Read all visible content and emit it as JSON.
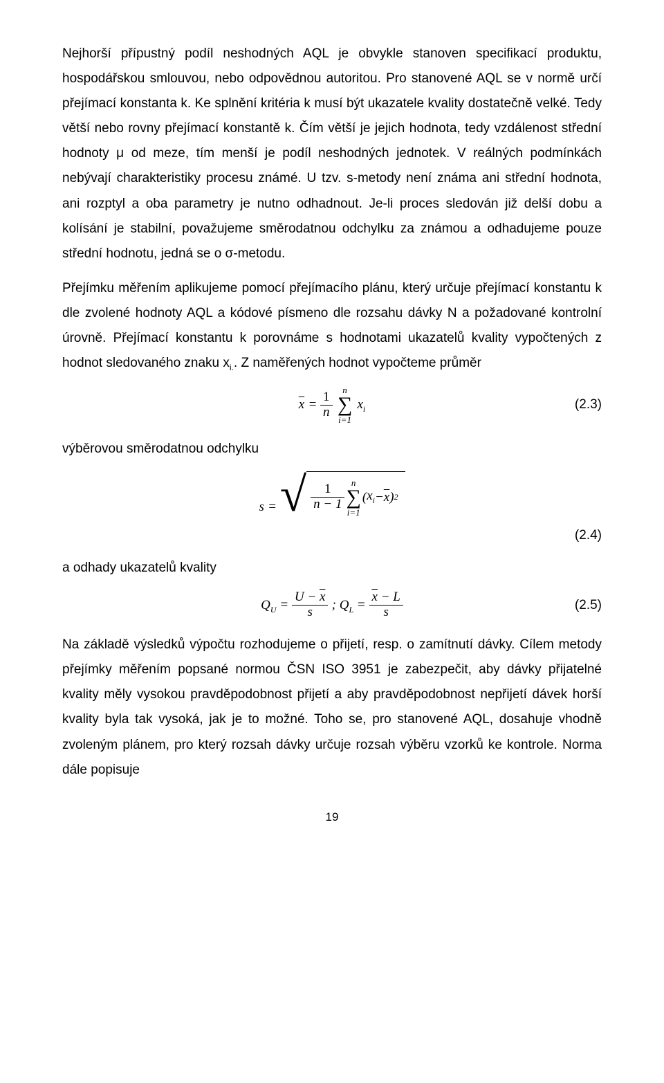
{
  "paragraph1": "Nejhorší přípustný podíl neshodných AQL je obvykle stanoven specifikací produktu, hospodářskou smlouvou, nebo odpovědnou autoritou. Pro stanovené AQL se v normě určí přejímací konstanta k. Ke splnění kritéria k musí být ukazatele kvality dostatečně velké. Tedy větší nebo rovny přejímací konstantě k. Čím větší je jejich hodnota, tedy vzdálenost střední hodnoty μ od meze, tím menší je podíl neshodných jednotek. V reálných podmínkách nebývají charakteristiky procesu známé. U tzv. s-metody není známa ani střední hodnota, ani rozptyl a oba parametry je nutno odhadnout. Je-li proces sledován již delší dobu a kolísání je stabilní, považujeme směrodatnou odchylku za známou a odhadujeme pouze střední hodnotu, jedná se o σ-metodu.",
  "paragraph2_a": "Přejímku měřením aplikujeme pomocí přejímacího plánu, který určuje přejímací konstantu k dle zvolené hodnoty AQL a kódové písmeno dle rozsahu dávky N a požadované kontrolní úrovně. Přejímací konstantu k porovnáme s hodnotami ukazatelů kvality vypočtených z hodnot sledovaného znaku x",
  "paragraph2_sub": "i.",
  "paragraph2_b": ". Z naměřených hodnot vypočteme průměr",
  "eq23_num": "(2.3)",
  "line_vyberovou": "výběrovou směrodatnou odchylku",
  "eq24_num": "(2.4)",
  "line_odhady": "a odhady ukazatelů kvality",
  "eq25_num": "(2.5)",
  "paragraph3": "Na základě výsledků výpočtu rozhodujeme o přijetí, resp. o zamítnutí dávky. Cílem metody přejímky měřením popsané normou ČSN ISO 3951 je zabezpečit, aby dávky přijatelné kvality měly vysokou pravděpodobnost přijetí a aby pravděpodobnost nepřijetí dávek horší kvality byla tak vysoká, jak je to možné. Toho se, pro stanovené AQL, dosahuje vhodně zvoleným plánem, pro který rozsah dávky určuje rozsah výběru vzorků ke kontrole. Norma dále popisuje",
  "page_number": "19",
  "math": {
    "xbar_eq": {
      "lhs_var": "x",
      "frac_num": "1",
      "frac_den": "n",
      "sum_top": "n",
      "sum_bot": "i=1",
      "term": "x",
      "term_sub": "i"
    },
    "s_eq": {
      "lhs_var": "s",
      "frac_num": "1",
      "frac_den": "n − 1",
      "sum_top": "n",
      "sum_bot": "i=1",
      "paren_l": "(",
      "xi": "x",
      "xi_sub": "i",
      "minus": " − ",
      "xbar": "x",
      "paren_r": ")",
      "sq": "2"
    },
    "q_eq": {
      "qu_lhs": "Q",
      "qu_sub": "U",
      "eq1": " = ",
      "frac1_num_a": "U − ",
      "frac1_num_xbar": "x",
      "frac1_den": "s",
      "sep": " ;    ",
      "ql_lhs": "Q",
      "ql_sub": "L",
      "eq2": " = ",
      "frac2_num_xbar": "x",
      "frac2_num_b": " − L",
      "frac2_den": "s"
    }
  }
}
